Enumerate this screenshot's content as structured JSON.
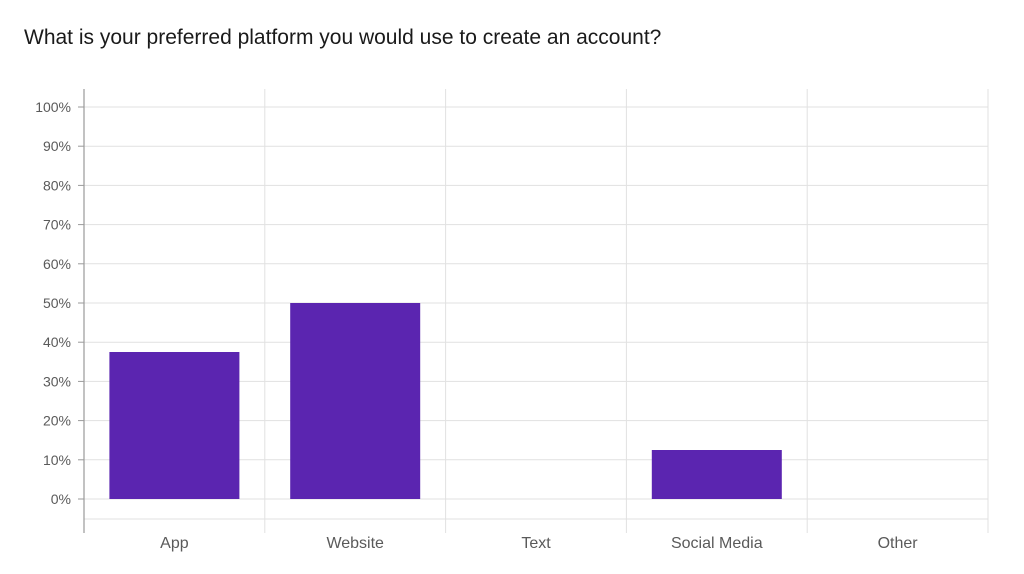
{
  "chart_data": {
    "type": "bar",
    "title": "What is your preferred platform you would use to create an account?",
    "categories": [
      "App",
      "Website",
      "Text",
      "Social Media",
      "Other"
    ],
    "values": [
      37.5,
      50,
      0,
      12.5,
      0
    ],
    "ylim": [
      0,
      100
    ],
    "yticks": [
      "0%",
      "10%",
      "20%",
      "30%",
      "40%",
      "50%",
      "60%",
      "70%",
      "80%",
      "90%",
      "100%"
    ],
    "xlabel": "",
    "ylabel": "",
    "grid": true,
    "bar_color": "#5b25b0",
    "grid_color": "#e1e1e1",
    "axis_color": "#9a9a9a"
  }
}
